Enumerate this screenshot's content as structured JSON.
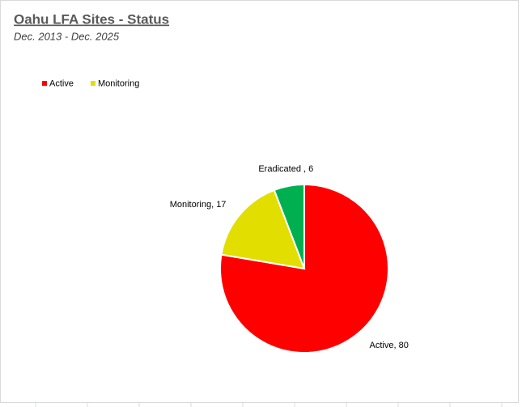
{
  "chart_data": {
    "type": "pie",
    "title": "Oahu LFA Sites - Status",
    "subtitle": "Dec. 2013 - Dec. 2025",
    "categories": [
      "Active",
      "Monitoring",
      "Eradicated "
    ],
    "values": [
      80,
      17,
      6
    ],
    "value_labels": [
      "Active, 80",
      "Monitoring, 17",
      "Eradicated , 6"
    ],
    "colors": [
      "#ff0000",
      "#e2de00",
      "#00b050"
    ],
    "legend": "top-left"
  }
}
